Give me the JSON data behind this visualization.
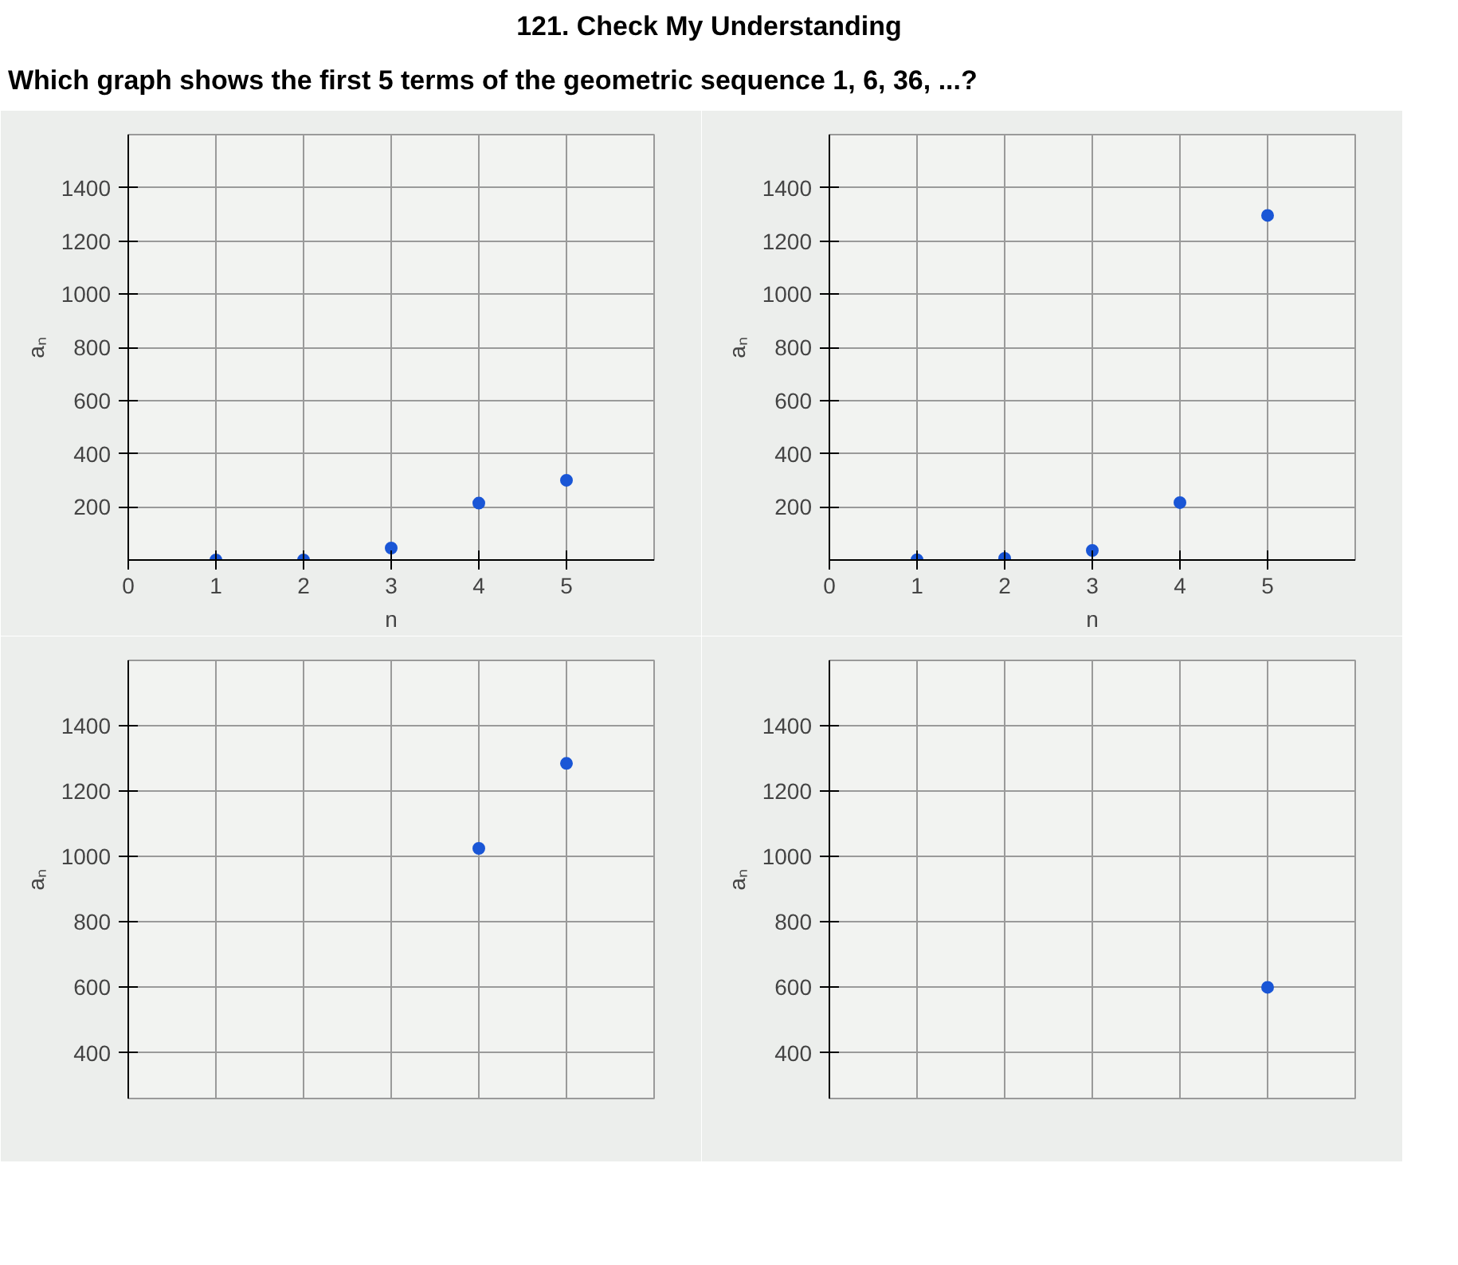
{
  "chart_data": [
    {
      "type": "scatter",
      "title": "121. Check My Understanding",
      "subtitle": "Which graph shows the first 5 terms of the geometric sequence 1, 6, 36, ...?",
      "xlabel": "n",
      "ylabel": "aₙ",
      "x": [
        1,
        2,
        3,
        4,
        5
      ],
      "values": [
        0,
        0,
        45,
        214,
        300
      ],
      "color": "#1a56d6",
      "marker": "circle",
      "xlim": [
        0,
        6
      ],
      "ylim": [
        0,
        1600
      ],
      "xticks": [
        0,
        1,
        2,
        3,
        4,
        5
      ],
      "yticks": [
        200,
        400,
        600,
        800,
        1000,
        1200,
        1400
      ],
      "grid": true
    },
    {
      "type": "scatter",
      "xlabel": "n",
      "ylabel": "aₙ",
      "x": [
        1,
        2,
        3,
        4,
        5
      ],
      "values": [
        1,
        6,
        36,
        216,
        1296
      ],
      "color": "#1a56d6",
      "marker": "circle",
      "xlim": [
        0,
        6
      ],
      "ylim": [
        0,
        1600
      ],
      "xticks": [
        0,
        1,
        2,
        3,
        4,
        5
      ],
      "yticks": [
        200,
        400,
        600,
        800,
        1000,
        1200,
        1400
      ],
      "grid": true
    },
    {
      "type": "scatter",
      "ylabel": "aₙ",
      "x": [
        4,
        5
      ],
      "values": [
        1025,
        1285
      ],
      "color": "#1a56d6",
      "marker": "circle",
      "xlim": [
        0,
        6
      ],
      "ylim": [
        260,
        1600
      ],
      "yticks": [
        400,
        600,
        800,
        1000,
        1200,
        1400
      ],
      "grid": true,
      "tick_labels": "y"
    },
    {
      "type": "scatter",
      "ylabel": "aₙ",
      "x": [
        5
      ],
      "values": [
        600
      ],
      "color": "#1a56d6",
      "marker": "circle",
      "xlim": [
        0,
        6
      ],
      "ylim": [
        260,
        1600
      ],
      "yticks": [
        400,
        600,
        800,
        1000,
        1200,
        1400
      ],
      "grid": true,
      "tick_labels": "y"
    }
  ]
}
